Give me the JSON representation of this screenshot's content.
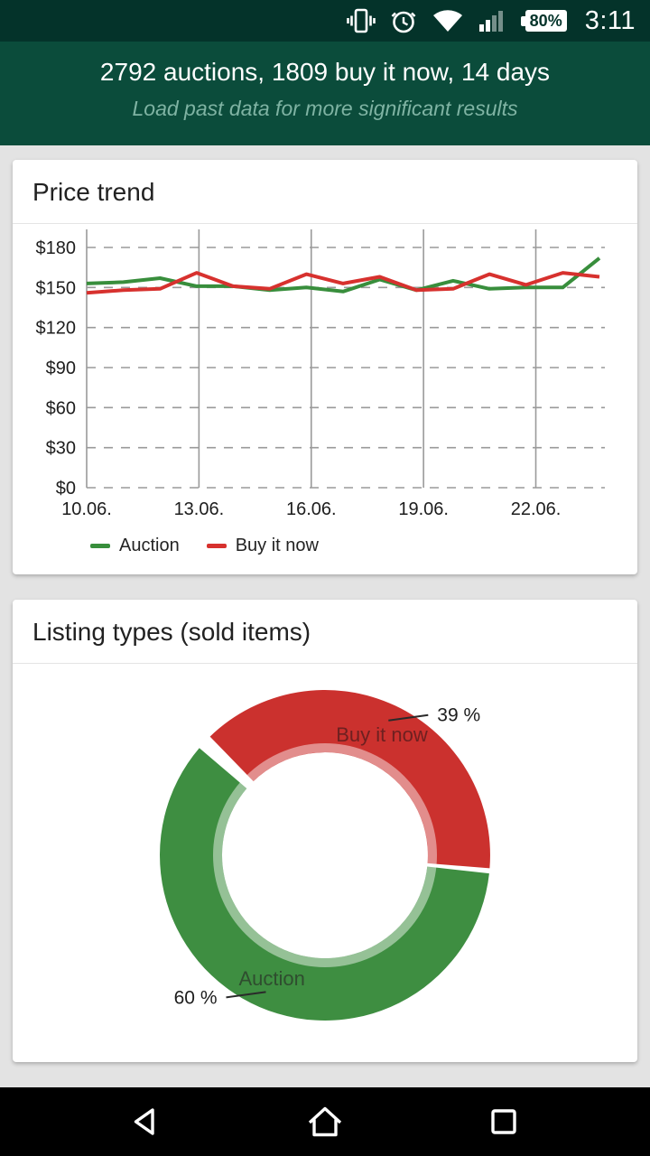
{
  "status_bar": {
    "time": "3:11",
    "battery_level": "80%",
    "icons": [
      "vibrate-icon",
      "alarm-icon",
      "wifi-icon",
      "signal-icon",
      "battery-icon"
    ]
  },
  "header": {
    "title": "2792 auctions, 1809 buy it now, 14 days",
    "subtitle": "Load past data for more significant results"
  },
  "cards": {
    "price_trend": {
      "title": "Price trend"
    },
    "listing_types": {
      "title": "Listing types (sold items)"
    }
  },
  "nav_bar": {
    "items": [
      "back",
      "home",
      "recents"
    ]
  },
  "colors": {
    "status_bar_bg": "#04332a",
    "header_bg": "#0b4c3b",
    "auction_green": "#388e3c",
    "buy_now_red": "#d7312e",
    "donut_red": "#cb312e",
    "donut_green": "#3e8e41"
  },
  "chart_data": [
    {
      "type": "line",
      "title": "Price trend",
      "x_tick_labels": [
        "10.06.",
        "13.06.",
        "16.06.",
        "19.06.",
        "22.06."
      ],
      "x_tick_values": [
        10,
        13,
        16,
        19,
        22
      ],
      "x_domain": [
        10,
        23.7
      ],
      "y_tick_labels": [
        "$0",
        "$30",
        "$60",
        "$90",
        "$120",
        "$150",
        "$180"
      ],
      "y_tick_values": [
        0,
        30,
        60,
        90,
        120,
        150,
        180
      ],
      "ylim": [
        0,
        195
      ],
      "grid": {
        "horizontal": "dashed",
        "vertical": "solid"
      },
      "legend_position": "bottom-left",
      "x": [
        10,
        10.98,
        11.96,
        12.94,
        13.91,
        14.89,
        15.87,
        16.85,
        17.83,
        18.81,
        19.79,
        20.76,
        21.74,
        22.72,
        23.7
      ],
      "series": [
        {
          "name": "Auction",
          "color": "#388e3c",
          "values": [
            153,
            154,
            157,
            151,
            151,
            148,
            150,
            147,
            156,
            148,
            155,
            149,
            150,
            150,
            172
          ]
        },
        {
          "name": "Buy it now",
          "color": "#d7312e",
          "values": [
            146,
            148,
            149,
            161,
            151,
            149,
            160,
            153,
            158,
            148,
            149,
            160,
            152,
            161,
            158
          ]
        }
      ]
    },
    {
      "type": "pie",
      "title": "Listing types (sold items)",
      "donut": true,
      "start_angle": -45,
      "slices": [
        {
          "label": "Buy it now",
          "value": 39,
          "display": "39 %",
          "color": "#cb312e",
          "label_color": "#6e2020"
        },
        {
          "label": "Auction",
          "value": 60,
          "display": "60 %",
          "color": "#3e8e41",
          "label_color": "#2f4d2f"
        }
      ]
    }
  ]
}
